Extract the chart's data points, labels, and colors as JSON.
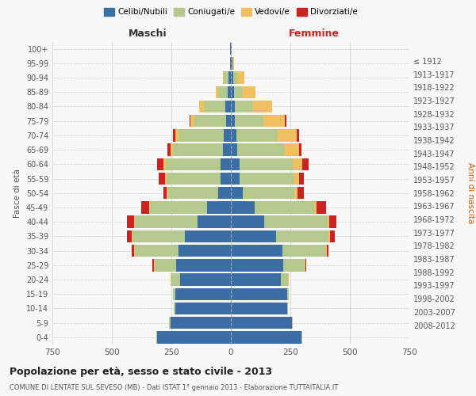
{
  "age_groups": [
    "0-4",
    "5-9",
    "10-14",
    "15-19",
    "20-24",
    "25-29",
    "30-34",
    "35-39",
    "40-44",
    "45-49",
    "50-54",
    "55-59",
    "60-64",
    "65-69",
    "70-74",
    "75-79",
    "80-84",
    "85-89",
    "90-94",
    "95-99",
    "100+"
  ],
  "birth_years": [
    "2008-2012",
    "2003-2007",
    "1998-2002",
    "1993-1997",
    "1988-1992",
    "1983-1987",
    "1978-1982",
    "1973-1977",
    "1968-1972",
    "1963-1967",
    "1958-1962",
    "1953-1957",
    "1948-1952",
    "1943-1947",
    "1938-1942",
    "1933-1937",
    "1928-1932",
    "1923-1927",
    "1918-1922",
    "1913-1917",
    "≤ 1912"
  ],
  "colors": {
    "celibi": "#3a6ea5",
    "coniugati": "#b5c98e",
    "vedovi": "#f0c060",
    "divorziati": "#cc2222"
  },
  "male": {
    "celibi": [
      310,
      255,
      235,
      235,
      215,
      230,
      220,
      195,
      140,
      100,
      55,
      45,
      45,
      35,
      30,
      20,
      25,
      15,
      10,
      5,
      2
    ],
    "coniugati": [
      5,
      5,
      5,
      10,
      35,
      90,
      185,
      220,
      265,
      240,
      210,
      225,
      230,
      210,
      190,
      135,
      90,
      40,
      20,
      0,
      0
    ],
    "vedovi": [
      0,
      0,
      0,
      0,
      2,
      5,
      3,
      3,
      3,
      3,
      5,
      8,
      10,
      10,
      15,
      15,
      20,
      10,
      5,
      0,
      0
    ],
    "divorziati": [
      0,
      0,
      0,
      0,
      2,
      5,
      8,
      20,
      30,
      35,
      12,
      25,
      25,
      12,
      10,
      5,
      0,
      0,
      0,
      0,
      0
    ]
  },
  "female": {
    "celibi": [
      295,
      255,
      235,
      235,
      210,
      220,
      215,
      190,
      140,
      100,
      50,
      38,
      35,
      28,
      22,
      18,
      18,
      12,
      10,
      5,
      2
    ],
    "coniugati": [
      5,
      5,
      5,
      8,
      30,
      90,
      185,
      220,
      265,
      250,
      215,
      225,
      225,
      200,
      175,
      120,
      75,
      35,
      15,
      0,
      0
    ],
    "vedovi": [
      0,
      0,
      0,
      0,
      2,
      3,
      3,
      5,
      8,
      10,
      15,
      25,
      40,
      60,
      80,
      90,
      80,
      55,
      30,
      8,
      2
    ],
    "divorziati": [
      0,
      0,
      0,
      0,
      2,
      3,
      8,
      20,
      30,
      40,
      25,
      20,
      25,
      10,
      8,
      5,
      0,
      0,
      0,
      0,
      0
    ]
  },
  "xlim": 750,
  "title": "Popolazione per età, sesso e stato civile - 2013",
  "subtitle": "COMUNE DI LENTATE SUL SEVESO (MB) - Dati ISTAT 1° gennaio 2013 - Elaborazione TUTTAITALIA.IT",
  "ylabel_left": "Fasce di età",
  "ylabel_right": "Anni di nascita",
  "label_maschi": "Maschi",
  "label_femmine": "Femmine",
  "legend_labels": [
    "Celibi/Nubili",
    "Coniugati/e",
    "Vedovi/e",
    "Divorziati/e"
  ],
  "bg_color": "#f8f8f8",
  "grid_color": "#cccccc"
}
